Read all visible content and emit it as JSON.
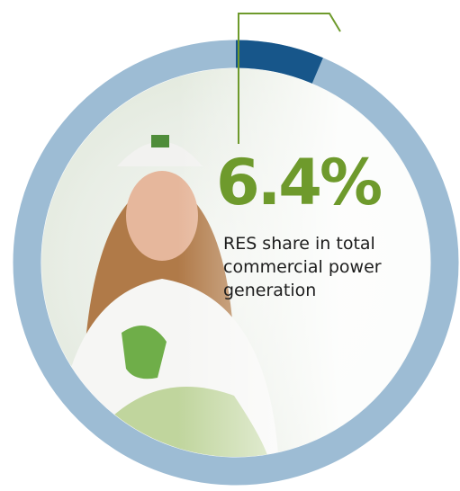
{
  "chart_data": {
    "type": "donut",
    "values": [
      6.4
    ],
    "value_labels": [
      "6.4%"
    ],
    "color": "#17568a",
    "ring_color": "#9dbcd4",
    "annotation": "RES share in total commercial power generation",
    "annotation_color": "#6e9a2c"
  }
}
